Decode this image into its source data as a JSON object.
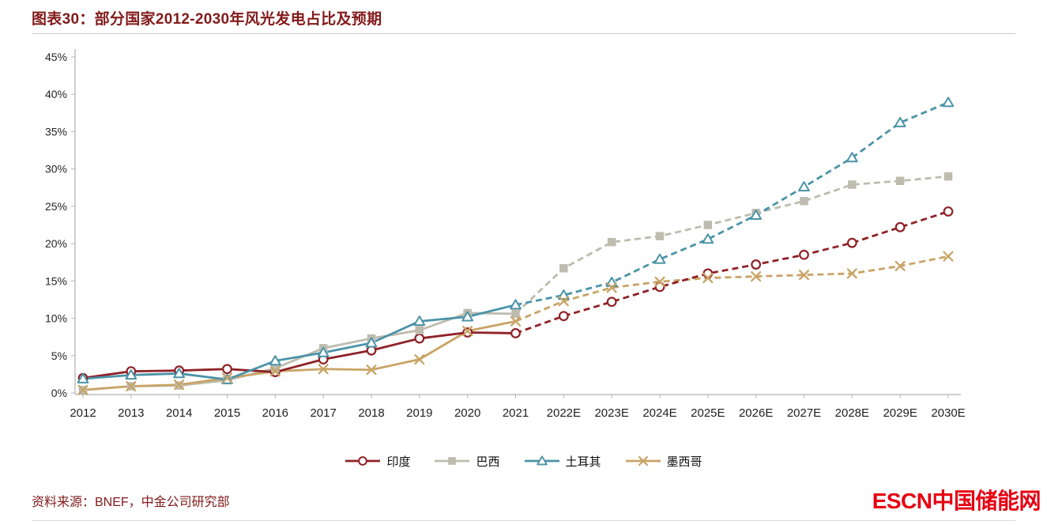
{
  "page": {
    "title": "图表30：部分国家2012-2030年风光发电占比及预期",
    "source_note": "资料来源：BNEF，中金公司研究部",
    "logo_text": "ESCN中国储能网",
    "logo_color": "#e60012",
    "title_color": "#821a1a"
  },
  "chart_data": {
    "type": "line",
    "title": "部分国家2012-2030年风光发电占比及预期",
    "xlabel": "",
    "ylabel": "",
    "unit": "%",
    "ylim": [
      0,
      45
    ],
    "ytick_step": 5,
    "grid": false,
    "legend_position": "bottom",
    "axis_color": "#b5b5b5",
    "forecast_start_index": 9,
    "forecast_style": "dashed",
    "categories": [
      "2012",
      "2013",
      "2014",
      "2015",
      "2016",
      "2017",
      "2018",
      "2019",
      "2020",
      "2021",
      "2022E",
      "2023E",
      "2024E",
      "2025E",
      "2026E",
      "2027E",
      "2028E",
      "2029E",
      "2030E"
    ],
    "series": [
      {
        "id": "india",
        "name": "印度",
        "color": "#8e2126",
        "marker": "circle-open",
        "values": [
          2.0,
          2.9,
          3.0,
          3.2,
          2.8,
          4.5,
          5.7,
          7.3,
          8.1,
          8.0,
          10.3,
          12.2,
          14.2,
          16.0,
          17.2,
          18.5,
          20.1,
          22.2,
          24.3
        ]
      },
      {
        "id": "brazil",
        "name": "巴西",
        "color": "#bdbcae",
        "marker": "square-filled",
        "values": [
          0.4,
          0.9,
          1.0,
          1.7,
          3.3,
          6.0,
          7.3,
          8.4,
          10.7,
          10.6,
          16.7,
          20.2,
          21.0,
          22.5,
          24.1,
          25.7,
          27.9,
          28.4,
          29.0
        ]
      },
      {
        "id": "turkey",
        "name": "土耳其",
        "color": "#4b93a8",
        "marker": "triangle-open",
        "values": [
          1.9,
          2.4,
          2.6,
          1.8,
          4.3,
          5.4,
          6.7,
          9.6,
          10.2,
          11.8,
          13.1,
          14.8,
          17.9,
          20.6,
          23.8,
          27.6,
          31.5,
          36.2,
          38.9
        ]
      },
      {
        "id": "mexico",
        "name": "墨西哥",
        "color": "#c8a465",
        "marker": "x",
        "values": [
          0.4,
          0.9,
          1.1,
          2.0,
          2.9,
          3.2,
          3.1,
          4.5,
          8.3,
          9.6,
          12.3,
          14.1,
          14.9,
          15.4,
          15.6,
          15.8,
          16.0,
          17.0,
          18.3
        ]
      }
    ]
  }
}
